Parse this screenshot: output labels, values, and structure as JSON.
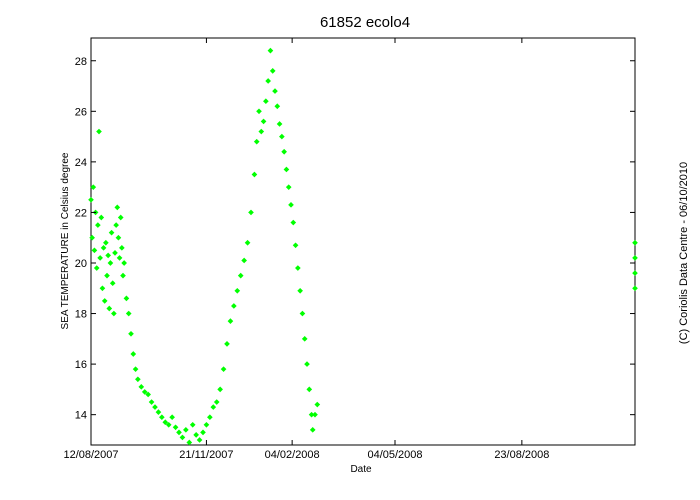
{
  "chart_data": {
    "type": "scatter",
    "title": "61852 ecolo4",
    "xlabel": "Date",
    "ylabel": "SEA TEMPERATURE in Celsius degree",
    "credit": "(C) Coriolis Data Centre - 06/10/2010",
    "x_ticks": [
      "12/08/2007",
      "21/11/2007",
      "04/02/2008",
      "04/05/2008",
      "23/08/2008"
    ],
    "y_ticks": [
      14,
      16,
      18,
      20,
      22,
      24,
      26,
      28
    ],
    "xlim": [
      "2007-08-12",
      "2008-11-30"
    ],
    "ylim": [
      12.8,
      28.9
    ],
    "grid": false,
    "marker_color": "#00ff00",
    "series": [
      {
        "values": [
          [
            "2007-08-12",
            22.5
          ],
          [
            "2007-08-13",
            21.0
          ],
          [
            "2007-08-14",
            23.0
          ],
          [
            "2007-08-15",
            20.5
          ],
          [
            "2007-08-16",
            22.0
          ],
          [
            "2007-08-17",
            19.8
          ],
          [
            "2007-08-18",
            21.5
          ],
          [
            "2007-08-19",
            25.2
          ],
          [
            "2007-08-20",
            20.2
          ],
          [
            "2007-08-21",
            21.8
          ],
          [
            "2007-08-22",
            19.0
          ],
          [
            "2007-08-23",
            20.6
          ],
          [
            "2007-08-24",
            18.5
          ],
          [
            "2007-08-25",
            20.8
          ],
          [
            "2007-08-26",
            19.5
          ],
          [
            "2007-08-27",
            20.3
          ],
          [
            "2007-08-28",
            18.2
          ],
          [
            "2007-08-29",
            20.0
          ],
          [
            "2007-08-30",
            21.2
          ],
          [
            "2007-08-31",
            19.2
          ],
          [
            "2007-09-01",
            18.0
          ],
          [
            "2007-09-02",
            20.4
          ],
          [
            "2007-09-03",
            21.5
          ],
          [
            "2007-09-04",
            22.2
          ],
          [
            "2007-09-05",
            21.0
          ],
          [
            "2007-09-06",
            20.2
          ],
          [
            "2007-09-07",
            21.8
          ],
          [
            "2007-09-08",
            20.6
          ],
          [
            "2007-09-09",
            19.5
          ],
          [
            "2007-09-10",
            20.0
          ],
          [
            "2007-09-12",
            18.6
          ],
          [
            "2007-09-14",
            18.0
          ],
          [
            "2007-09-16",
            17.2
          ],
          [
            "2007-09-18",
            16.4
          ],
          [
            "2007-09-20",
            15.8
          ],
          [
            "2007-09-22",
            15.4
          ],
          [
            "2007-09-25",
            15.1
          ],
          [
            "2007-09-28",
            14.9
          ],
          [
            "2007-10-01",
            14.8
          ],
          [
            "2007-10-04",
            14.5
          ],
          [
            "2007-10-07",
            14.3
          ],
          [
            "2007-10-10",
            14.1
          ],
          [
            "2007-10-13",
            13.9
          ],
          [
            "2007-10-16",
            13.7
          ],
          [
            "2007-10-19",
            13.6
          ],
          [
            "2007-10-22",
            13.9
          ],
          [
            "2007-10-25",
            13.5
          ],
          [
            "2007-10-28",
            13.3
          ],
          [
            "2007-10-31",
            13.1
          ],
          [
            "2007-11-03",
            13.4
          ],
          [
            "2007-11-06",
            12.9
          ],
          [
            "2007-11-09",
            13.6
          ],
          [
            "2007-11-12",
            13.2
          ],
          [
            "2007-11-15",
            13.0
          ],
          [
            "2007-11-18",
            13.3
          ],
          [
            "2007-11-21",
            13.6
          ],
          [
            "2007-11-24",
            13.9
          ],
          [
            "2007-11-27",
            14.3
          ],
          [
            "2007-11-30",
            14.5
          ],
          [
            "2007-12-03",
            15.0
          ],
          [
            "2007-12-06",
            15.8
          ],
          [
            "2007-12-09",
            16.8
          ],
          [
            "2007-12-12",
            17.7
          ],
          [
            "2007-12-15",
            18.3
          ],
          [
            "2007-12-18",
            18.9
          ],
          [
            "2007-12-21",
            19.5
          ],
          [
            "2007-12-24",
            20.1
          ],
          [
            "2007-12-27",
            20.8
          ],
          [
            "2007-12-30",
            22.0
          ],
          [
            "2008-01-02",
            23.5
          ],
          [
            "2008-01-04",
            24.8
          ],
          [
            "2008-01-06",
            26.0
          ],
          [
            "2008-01-08",
            25.2
          ],
          [
            "2008-01-10",
            25.6
          ],
          [
            "2008-01-12",
            26.4
          ],
          [
            "2008-01-14",
            27.2
          ],
          [
            "2008-01-16",
            28.4
          ],
          [
            "2008-01-18",
            27.6
          ],
          [
            "2008-01-20",
            26.8
          ],
          [
            "2008-01-22",
            26.2
          ],
          [
            "2008-01-24",
            25.5
          ],
          [
            "2008-01-26",
            25.0
          ],
          [
            "2008-01-28",
            24.4
          ],
          [
            "2008-01-30",
            23.7
          ],
          [
            "2008-02-01",
            23.0
          ],
          [
            "2008-02-03",
            22.3
          ],
          [
            "2008-02-05",
            21.6
          ],
          [
            "2008-02-07",
            20.7
          ],
          [
            "2008-02-09",
            19.8
          ],
          [
            "2008-02-11",
            18.9
          ],
          [
            "2008-02-13",
            18.0
          ],
          [
            "2008-02-15",
            17.0
          ],
          [
            "2008-02-17",
            16.0
          ],
          [
            "2008-02-19",
            15.0
          ],
          [
            "2008-02-21",
            14.0
          ],
          [
            "2008-02-22",
            13.4
          ],
          [
            "2008-02-24",
            14.0
          ],
          [
            "2008-02-26",
            14.4
          ],
          [
            "2008-11-30",
            20.8
          ],
          [
            "2008-11-30",
            20.2
          ],
          [
            "2008-11-30",
            19.6
          ],
          [
            "2008-11-30",
            19.0
          ]
        ]
      }
    ]
  }
}
